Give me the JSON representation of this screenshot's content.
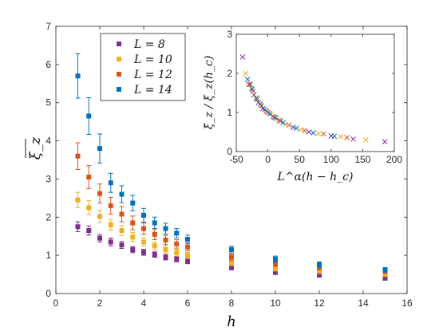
{
  "chart_data": [
    {
      "type": "scatter",
      "xlabel": "h",
      "ylabel": "ξ_z",
      "xlim": [
        0,
        16
      ],
      "ylim": [
        0,
        7
      ],
      "xticks": [
        "0",
        "2",
        "4",
        "6",
        "8",
        "10",
        "12",
        "14",
        "16"
      ],
      "yticks": [
        "0",
        "1",
        "2",
        "3",
        "4",
        "5",
        "6",
        "7"
      ],
      "legend": {
        "position": "top-center",
        "entries": [
          "L = 8",
          "L = 10",
          "L = 12",
          "L = 14"
        ]
      },
      "series": [
        {
          "name": "L = 8",
          "color": "#7e2f8e",
          "points": [
            {
              "x": 1.0,
              "y": 1.75,
              "err": 0.13
            },
            {
              "x": 1.5,
              "y": 1.65,
              "err": 0.12
            },
            {
              "x": 2.0,
              "y": 1.45,
              "err": 0.1
            },
            {
              "x": 2.5,
              "y": 1.35,
              "err": 0.1
            },
            {
              "x": 3.0,
              "y": 1.27,
              "err": 0.09
            },
            {
              "x": 3.5,
              "y": 1.15,
              "err": 0.08
            },
            {
              "x": 4.0,
              "y": 1.08,
              "err": 0.08
            },
            {
              "x": 4.5,
              "y": 1.02,
              "err": 0.07
            },
            {
              "x": 5.0,
              "y": 0.95,
              "err": 0.07
            },
            {
              "x": 5.5,
              "y": 0.9,
              "err": 0.07
            },
            {
              "x": 6.0,
              "y": 0.85,
              "err": 0.07
            },
            {
              "x": 8.0,
              "y": 0.68,
              "err": 0.06
            },
            {
              "x": 10.0,
              "y": 0.55,
              "err": 0.05
            },
            {
              "x": 12.0,
              "y": 0.48,
              "err": 0.05
            },
            {
              "x": 15.0,
              "y": 0.4,
              "err": 0.04
            }
          ]
        },
        {
          "name": "L = 10",
          "color": "#edb120",
          "points": [
            {
              "x": 1.0,
              "y": 2.45,
              "err": 0.2
            },
            {
              "x": 1.5,
              "y": 2.25,
              "err": 0.18
            },
            {
              "x": 2.0,
              "y": 2.02,
              "err": 0.16
            },
            {
              "x": 2.5,
              "y": 1.8,
              "err": 0.14
            },
            {
              "x": 3.0,
              "y": 1.65,
              "err": 0.13
            },
            {
              "x": 3.5,
              "y": 1.48,
              "err": 0.12
            },
            {
              "x": 4.0,
              "y": 1.35,
              "err": 0.11
            },
            {
              "x": 4.5,
              "y": 1.25,
              "err": 0.1
            },
            {
              "x": 5.0,
              "y": 1.15,
              "err": 0.09
            },
            {
              "x": 5.5,
              "y": 1.07,
              "err": 0.09
            },
            {
              "x": 6.0,
              "y": 1.0,
              "err": 0.08
            },
            {
              "x": 8.0,
              "y": 0.8,
              "err": 0.07
            },
            {
              "x": 10.0,
              "y": 0.65,
              "err": 0.06
            },
            {
              "x": 12.0,
              "y": 0.58,
              "err": 0.05
            },
            {
              "x": 15.0,
              "y": 0.5,
              "err": 0.05
            }
          ]
        },
        {
          "name": "L = 12",
          "color": "#d95319",
          "points": [
            {
              "x": 1.0,
              "y": 3.6,
              "err": 0.35
            },
            {
              "x": 1.5,
              "y": 3.05,
              "err": 0.3
            },
            {
              "x": 2.0,
              "y": 2.62,
              "err": 0.25
            },
            {
              "x": 2.5,
              "y": 2.3,
              "err": 0.22
            },
            {
              "x": 3.0,
              "y": 2.08,
              "err": 0.2
            },
            {
              "x": 3.5,
              "y": 1.85,
              "err": 0.18
            },
            {
              "x": 4.0,
              "y": 1.7,
              "err": 0.15
            },
            {
              "x": 4.5,
              "y": 1.55,
              "err": 0.14
            },
            {
              "x": 5.0,
              "y": 1.4,
              "err": 0.12
            },
            {
              "x": 5.5,
              "y": 1.3,
              "err": 0.11
            },
            {
              "x": 6.0,
              "y": 1.22,
              "err": 0.1
            },
            {
              "x": 8.0,
              "y": 0.95,
              "err": 0.08
            },
            {
              "x": 10.0,
              "y": 0.78,
              "err": 0.07
            },
            {
              "x": 12.0,
              "y": 0.68,
              "err": 0.06
            },
            {
              "x": 15.0,
              "y": 0.58,
              "err": 0.05
            }
          ]
        },
        {
          "name": "L = 14",
          "color": "#0072bd",
          "points": [
            {
              "x": 1.0,
              "y": 5.7,
              "err": 0.58
            },
            {
              "x": 1.5,
              "y": 4.65,
              "err": 0.48
            },
            {
              "x": 2.0,
              "y": 3.8,
              "err": 0.38
            },
            {
              "x": 2.5,
              "y": 2.9,
              "err": 0.25
            },
            {
              "x": 3.0,
              "y": 2.6,
              "err": 0.22
            },
            {
              "x": 3.5,
              "y": 2.37,
              "err": 0.2
            },
            {
              "x": 4.0,
              "y": 2.05,
              "err": 0.18
            },
            {
              "x": 4.5,
              "y": 1.85,
              "err": 0.15
            },
            {
              "x": 5.0,
              "y": 1.7,
              "err": 0.14
            },
            {
              "x": 5.5,
              "y": 1.58,
              "err": 0.12
            },
            {
              "x": 6.0,
              "y": 1.42,
              "err": 0.11
            },
            {
              "x": 8.0,
              "y": 1.15,
              "err": 0.09
            },
            {
              "x": 10.0,
              "y": 0.9,
              "err": 0.08
            },
            {
              "x": 12.0,
              "y": 0.76,
              "err": 0.07
            },
            {
              "x": 15.0,
              "y": 0.62,
              "err": 0.06
            }
          ]
        }
      ]
    },
    {
      "type": "scatter",
      "inset": true,
      "xlabel": "L^α(h − h_c)",
      "ylabel": "ξ̄_z / ξ̄_z(h_c)",
      "xlim": [
        -50,
        200
      ],
      "ylim": [
        0,
        3
      ],
      "xticks": [
        "-50",
        "0",
        "50",
        "100",
        "150",
        "200"
      ],
      "yticks": [
        "0",
        "1",
        "2",
        "3"
      ],
      "marker": "x",
      "series": [
        {
          "name": "L = 8",
          "color": "#7e2f8e",
          "points": [
            {
              "x": -40,
              "y": 2.42
            },
            {
              "x": -28,
              "y": 1.72
            },
            {
              "x": -22,
              "y": 1.45
            },
            {
              "x": -15,
              "y": 1.25
            },
            {
              "x": -8,
              "y": 1.1
            },
            {
              "x": 0,
              "y": 1.0
            },
            {
              "x": 10,
              "y": 0.88
            },
            {
              "x": 20,
              "y": 0.78
            },
            {
              "x": 40,
              "y": 0.62
            },
            {
              "x": 65,
              "y": 0.5
            },
            {
              "x": 100,
              "y": 0.4
            },
            {
              "x": 135,
              "y": 0.32
            },
            {
              "x": 185,
              "y": 0.25
            }
          ]
        },
        {
          "name": "L = 10",
          "color": "#edb120",
          "points": [
            {
              "x": -35,
              "y": 2.0
            },
            {
              "x": -26,
              "y": 1.62
            },
            {
              "x": -19,
              "y": 1.38
            },
            {
              "x": -11,
              "y": 1.18
            },
            {
              "x": -3,
              "y": 1.05
            },
            {
              "x": 5,
              "y": 0.95
            },
            {
              "x": 15,
              "y": 0.83
            },
            {
              "x": 28,
              "y": 0.7
            },
            {
              "x": 52,
              "y": 0.56
            },
            {
              "x": 80,
              "y": 0.46
            },
            {
              "x": 115,
              "y": 0.38
            },
            {
              "x": 155,
              "y": 0.3
            }
          ]
        },
        {
          "name": "L = 12",
          "color": "#d95319",
          "points": [
            {
              "x": -30,
              "y": 1.72
            },
            {
              "x": -24,
              "y": 1.55
            },
            {
              "x": -17,
              "y": 1.33
            },
            {
              "x": -10,
              "y": 1.17
            },
            {
              "x": -2,
              "y": 1.03
            },
            {
              "x": 8,
              "y": 0.9
            },
            {
              "x": 18,
              "y": 0.8
            },
            {
              "x": 33,
              "y": 0.68
            },
            {
              "x": 58,
              "y": 0.54
            },
            {
              "x": 88,
              "y": 0.45
            },
            {
              "x": 125,
              "y": 0.36
            }
          ]
        },
        {
          "name": "L = 14",
          "color": "#0072bd",
          "points": [
            {
              "x": -32,
              "y": 1.85
            },
            {
              "x": -25,
              "y": 1.6
            },
            {
              "x": -18,
              "y": 1.36
            },
            {
              "x": -12,
              "y": 1.22
            },
            {
              "x": -5,
              "y": 1.08
            },
            {
              "x": 3,
              "y": 0.97
            },
            {
              "x": 12,
              "y": 0.86
            },
            {
              "x": 24,
              "y": 0.74
            },
            {
              "x": 45,
              "y": 0.6
            },
            {
              "x": 72,
              "y": 0.48
            },
            {
              "x": 105,
              "y": 0.39
            }
          ]
        }
      ]
    }
  ]
}
